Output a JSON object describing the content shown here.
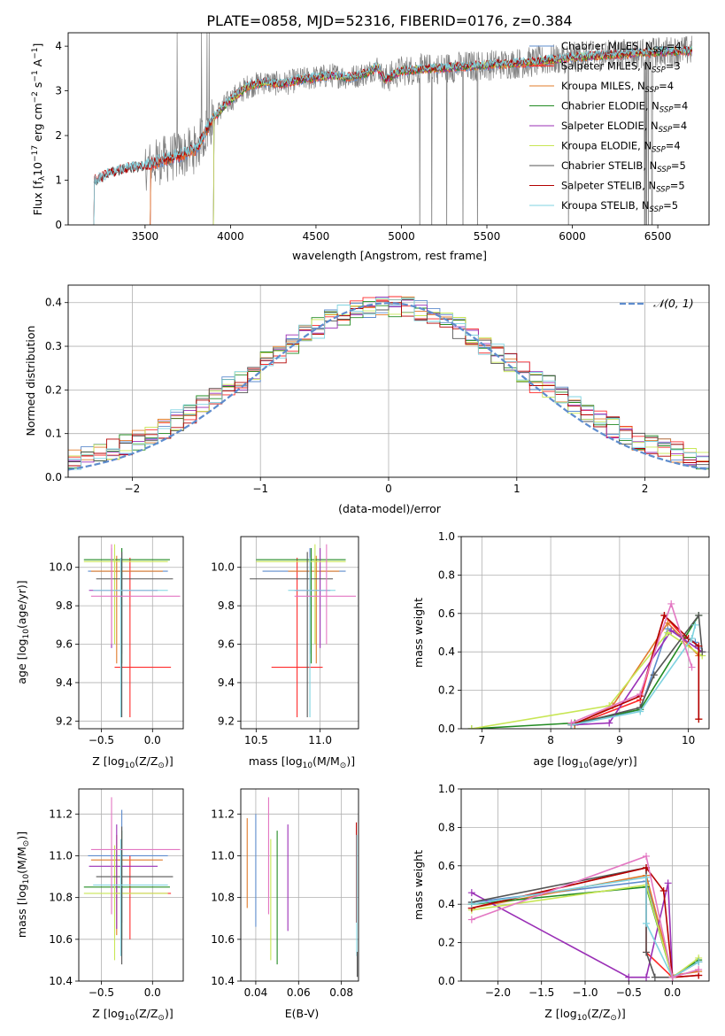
{
  "title": "PLATE=0858, MJD=52316, FIBERID=0176, z=0.384",
  "colors": {
    "chabrier_miles": "#5e8ccd",
    "salpeter_miles": "#ff2a2a",
    "kroupa_miles": "#e07b2a",
    "chabrier_elodie": "#228b22",
    "salpeter_elodie": "#9a2fb6",
    "kroupa_elodie": "#c8e655",
    "chabrier_stelib": "#555555",
    "salpeter_stelib": "#b30000",
    "kroupa_stelib": "#7fd3e0",
    "pink": "#e377c2",
    "data_gray": "#808080"
  },
  "chart_data": [
    {
      "id": "spectrum",
      "type": "line",
      "xlabel": "wavelength [Angstrom, rest frame]",
      "ylabel": "Flux [f_λ 10^-17 erg cm^-2 s^-1 A^-1]",
      "xlim": [
        3050,
        6800
      ],
      "ylim": [
        0,
        4.3
      ],
      "xticks": [
        3500,
        4000,
        4500,
        5000,
        5500,
        6000,
        6500
      ],
      "yticks": [
        0,
        1,
        2,
        3,
        4
      ],
      "legend_placement": "top-right",
      "legend": [
        {
          "key": "chabrier_miles",
          "pre": "Chabrier MILES, N",
          "post": "=4"
        },
        {
          "key": "salpeter_miles",
          "pre": "Salpeter MILES, N",
          "post": "=3"
        },
        {
          "key": "kroupa_miles",
          "pre": "Kroupa MILES, N",
          "post": "=4"
        },
        {
          "key": "chabrier_elodie",
          "pre": "Chabrier ELODIE, N",
          "post": "=4"
        },
        {
          "key": "salpeter_elodie",
          "pre": "Salpeter ELODIE, N",
          "post": "=4"
        },
        {
          "key": "kroupa_elodie",
          "pre": "Kroupa ELODIE, N",
          "post": "=4"
        },
        {
          "key": "chabrier_stelib",
          "pre": "Chabrier STELIB, N",
          "post": "=5"
        },
        {
          "key": "salpeter_stelib",
          "pre": "Salpeter STELIB, N",
          "post": "=5"
        },
        {
          "key": "kroupa_stelib",
          "pre": "Kroupa STELIB, N",
          "post": "=5"
        }
      ],
      "legend_sub": "SSP",
      "model_nodes": {
        "x": [
          3200,
          3300,
          3400,
          3500,
          3600,
          3700,
          3800,
          3900,
          4000,
          4100,
          4200,
          4300,
          4400,
          4500,
          4600,
          4700,
          4800,
          4860,
          4900,
          5000,
          5200,
          5400,
          5600,
          5800,
          6000,
          6200,
          6400,
          6700
        ],
        "y": [
          0.95,
          1.15,
          1.25,
          1.3,
          1.45,
          1.55,
          1.7,
          2.4,
          2.8,
          3.1,
          3.2,
          3.15,
          3.25,
          3.3,
          3.35,
          3.3,
          3.4,
          3.55,
          3.25,
          3.45,
          3.5,
          3.55,
          3.6,
          3.65,
          3.75,
          3.8,
          3.85,
          3.9
        ]
      }
    },
    {
      "id": "residuals",
      "type": "histogram",
      "xlabel": "(data-model)/error",
      "ylabel": "Normed distribution",
      "xlim": [
        -2.5,
        2.5
      ],
      "ylim": [
        0,
        0.44
      ],
      "xticks": [
        -2,
        -1,
        0,
        1,
        2
      ],
      "yticks": [
        0.0,
        0.1,
        0.2,
        0.3,
        0.4
      ],
      "legend": "𝒩(0, 1)",
      "legend_placement": "top-right",
      "bin_width": 0.1
    },
    {
      "id": "age_vs_Z",
      "type": "errorbar",
      "xlabel_pre": "Z [log",
      "xlabel_post": "(Z/Z",
      "ylabel_pre": "age  [log",
      "ylabel_post": "(age/yr)]",
      "xlim": [
        -0.72,
        0.3
      ],
      "ylim": [
        9.16,
        10.16
      ],
      "xticks": [
        -0.5,
        0.0
      ],
      "yticks": [
        9.2,
        9.4,
        9.6,
        9.8,
        10.0
      ],
      "points": [
        {
          "c": "chabrier_miles",
          "x": -0.3,
          "y": 9.98,
          "xe": [
            -0.63,
            0.15
          ],
          "ye": [
            9.55,
            10.1
          ]
        },
        {
          "c": "salpeter_miles",
          "x": -0.22,
          "y": 9.48,
          "xe": [
            -0.37,
            0.18
          ],
          "ye": [
            9.22,
            10.05
          ]
        },
        {
          "c": "kroupa_miles",
          "x": -0.35,
          "y": 9.98,
          "xe": [
            -0.6,
            0.1
          ],
          "ye": [
            9.5,
            10.06
          ]
        },
        {
          "c": "chabrier_elodie",
          "x": -0.3,
          "y": 10.04,
          "xe": [
            -0.67,
            0.17
          ],
          "ye": [
            9.5,
            10.1
          ]
        },
        {
          "c": "salpeter_elodie",
          "x": -0.4,
          "y": 9.88,
          "xe": [
            -0.62,
            0.05
          ],
          "ye": [
            9.58,
            10.1
          ]
        },
        {
          "c": "kroupa_elodie",
          "x": -0.37,
          "y": 10.03,
          "xe": [
            -0.67,
            0.15
          ],
          "ye": [
            9.6,
            10.12
          ]
        },
        {
          "c": "chabrier_stelib",
          "x": -0.3,
          "y": 9.94,
          "xe": [
            -0.55,
            0.2
          ],
          "ye": [
            9.22,
            10.08
          ]
        },
        {
          "c": "kroupa_stelib",
          "x": -0.31,
          "y": 9.88,
          "xe": [
            -0.58,
            0.15
          ],
          "ye": [
            9.22,
            10.05
          ]
        },
        {
          "c": "pink",
          "x": -0.4,
          "y": 9.85,
          "xe": [
            -0.6,
            0.27
          ],
          "ye": [
            9.6,
            10.12
          ]
        }
      ]
    },
    {
      "id": "age_vs_mass",
      "type": "errorbar",
      "xlabel_pre": "mass [log",
      "xlabel_post": "(M/M",
      "xlim": [
        10.38,
        11.3
      ],
      "ylim": [
        9.16,
        10.16
      ],
      "xticks": [
        10.5,
        11.0
      ],
      "yticks": [
        9.2,
        9.4,
        9.6,
        9.8,
        10.0
      ],
      "points": [
        {
          "c": "chabrier_miles",
          "x": 10.92,
          "y": 9.98,
          "xe": [
            10.55,
            11.2
          ],
          "ye": [
            9.55,
            10.1
          ]
        },
        {
          "c": "salpeter_miles",
          "x": 10.82,
          "y": 9.48,
          "xe": [
            10.62,
            11.02
          ],
          "ye": [
            9.22,
            10.05
          ]
        },
        {
          "c": "kroupa_miles",
          "x": 10.97,
          "y": 9.98,
          "xe": [
            10.75,
            11.15
          ],
          "ye": [
            9.5,
            10.06
          ]
        },
        {
          "c": "chabrier_elodie",
          "x": 10.93,
          "y": 10.04,
          "xe": [
            10.5,
            11.2
          ],
          "ye": [
            9.5,
            10.1
          ]
        },
        {
          "c": "salpeter_elodie",
          "x": 11.0,
          "y": 9.88,
          "xe": [
            10.8,
            11.08
          ],
          "ye": [
            9.58,
            10.1
          ]
        },
        {
          "c": "kroupa_elodie",
          "x": 10.96,
          "y": 10.03,
          "xe": [
            10.5,
            11.2
          ],
          "ye": [
            9.6,
            10.12
          ]
        },
        {
          "c": "chabrier_stelib",
          "x": 10.9,
          "y": 9.94,
          "xe": [
            10.45,
            11.1
          ],
          "ye": [
            9.22,
            10.08
          ]
        },
        {
          "c": "kroupa_stelib",
          "x": 10.92,
          "y": 9.88,
          "xe": [
            10.75,
            11.12
          ],
          "ye": [
            9.22,
            10.05
          ]
        },
        {
          "c": "pink",
          "x": 11.05,
          "y": 9.85,
          "xe": [
            10.8,
            11.28
          ],
          "ye": [
            9.6,
            10.12
          ]
        }
      ]
    },
    {
      "id": "weight_vs_age",
      "type": "line",
      "xlabel_pre": "age  [log",
      "xlabel_post": "(age/yr)]",
      "ylabel": "mass weight",
      "xlim": [
        6.7,
        10.3
      ],
      "ylim": [
        0,
        1.0
      ],
      "xticks": [
        7,
        8,
        9,
        10
      ],
      "yticks": [
        0.0,
        0.2,
        0.4,
        0.6,
        0.8,
        1.0
      ],
      "series": [
        {
          "c": "chabrier_miles",
          "x": [
            8.35,
            9.3,
            9.7,
            10.1,
            10.15
          ],
          "y": [
            0.02,
            0.1,
            0.52,
            0.45,
            0.42
          ]
        },
        {
          "c": "salpeter_miles",
          "x": [
            8.35,
            9.3,
            9.65,
            9.95
          ],
          "y": [
            0.02,
            0.15,
            0.59,
            0.47
          ]
        },
        {
          "c": "kroupa_miles",
          "x": [
            8.35,
            8.9,
            9.7,
            10.15,
            10.15
          ],
          "y": [
            0.02,
            0.12,
            0.55,
            0.38,
            0.05
          ]
        },
        {
          "c": "chabrier_elodie",
          "x": [
            6.85,
            8.35,
            9.3,
            10.15
          ],
          "y": [
            0.0,
            0.03,
            0.1,
            0.59
          ]
        },
        {
          "c": "salpeter_elodie",
          "x": [
            8.3,
            8.85,
            9.75,
            10.2
          ],
          "y": [
            0.02,
            0.03,
            0.51,
            0.4
          ]
        },
        {
          "c": "kroupa_elodie",
          "x": [
            6.85,
            8.85,
            9.7,
            10.2
          ],
          "y": [
            0.0,
            0.12,
            0.5,
            0.38
          ]
        },
        {
          "c": "chabrier_stelib",
          "x": [
            8.3,
            9.3,
            9.5,
            10.15,
            10.2
          ],
          "y": [
            0.02,
            0.11,
            0.28,
            0.59,
            0.4
          ]
        },
        {
          "c": "salpeter_stelib",
          "x": [
            8.3,
            9.3,
            9.65,
            10.0,
            10.15,
            10.15
          ],
          "y": [
            0.02,
            0.17,
            0.59,
            0.47,
            0.43,
            0.05
          ]
        },
        {
          "c": "kroupa_stelib",
          "x": [
            8.3,
            9.3,
            10.05,
            10.1
          ],
          "y": [
            0.02,
            0.09,
            0.47,
            0.54
          ]
        },
        {
          "c": "pink",
          "x": [
            8.3,
            9.3,
            9.75,
            10.05
          ],
          "y": [
            0.03,
            0.18,
            0.65,
            0.32
          ]
        }
      ]
    },
    {
      "id": "mass_vs_Z",
      "type": "errorbar",
      "xlabel_pre": "Z [log",
      "xlabel_post": "(Z/Z",
      "ylabel_pre": "mass [log",
      "ylabel_post": "(M/M",
      "xlim": [
        -0.72,
        0.3
      ],
      "ylim": [
        10.4,
        11.32
      ],
      "xticks": [
        -0.5,
        0.0
      ],
      "yticks": [
        10.4,
        10.6,
        10.8,
        11.0,
        11.2
      ],
      "points": [
        {
          "c": "chabrier_miles",
          "x": -0.3,
          "y": 11.0,
          "xe": [
            -0.63,
            0.15
          ],
          "ye": [
            10.68,
            11.22
          ]
        },
        {
          "c": "salpeter_miles",
          "x": -0.22,
          "y": 10.82,
          "xe": [
            -0.37,
            0.18
          ],
          "ye": [
            10.6,
            11.0
          ]
        },
        {
          "c": "kroupa_miles",
          "x": -0.35,
          "y": 10.98,
          "xe": [
            -0.6,
            0.1
          ],
          "ye": [
            10.62,
            11.1
          ]
        },
        {
          "c": "chabrier_elodie",
          "x": -0.3,
          "y": 10.85,
          "xe": [
            -0.67,
            0.17
          ],
          "ye": [
            10.6,
            11.12
          ]
        },
        {
          "c": "salpeter_elodie",
          "x": -0.35,
          "y": 10.95,
          "xe": [
            -0.62,
            0.05
          ],
          "ye": [
            10.65,
            11.15
          ]
        },
        {
          "c": "kroupa_elodie",
          "x": -0.37,
          "y": 10.82,
          "xe": [
            -0.67,
            0.15
          ],
          "ye": [
            10.5,
            11.05
          ]
        },
        {
          "c": "chabrier_stelib",
          "x": -0.3,
          "y": 10.9,
          "xe": [
            -0.55,
            0.2
          ],
          "ye": [
            10.48,
            11.14
          ]
        },
        {
          "c": "kroupa_stelib",
          "x": -0.31,
          "y": 10.86,
          "xe": [
            -0.58,
            0.15
          ],
          "ye": [
            10.52,
            11.08
          ]
        },
        {
          "c": "pink",
          "x": -0.4,
          "y": 11.03,
          "xe": [
            -0.6,
            0.27
          ],
          "ye": [
            10.72,
            11.28
          ]
        }
      ]
    },
    {
      "id": "mass_vs_EBV",
      "type": "errorbar",
      "xlabel": "E(B-V)",
      "xlim": [
        0.033,
        0.088
      ],
      "ylim": [
        10.4,
        11.32
      ],
      "xticks": [
        0.04,
        0.06,
        0.08
      ],
      "yticks": [
        10.4,
        10.6,
        10.8,
        11.0,
        11.2
      ],
      "points": [
        {
          "c": "kroupa_miles",
          "x": 0.036,
          "y": 10.95,
          "xe": [
            0.036,
            0.036
          ],
          "ye": [
            10.75,
            11.18
          ]
        },
        {
          "c": "chabrier_miles",
          "x": 0.04,
          "y": 10.95,
          "xe": [
            0.04,
            0.04
          ],
          "ye": [
            10.66,
            11.2
          ]
        },
        {
          "c": "pink",
          "x": 0.046,
          "y": 11.0,
          "xe": [
            0.046,
            0.046
          ],
          "ye": [
            10.72,
            11.28
          ]
        },
        {
          "c": "kroupa_elodie",
          "x": 0.047,
          "y": 10.8,
          "xe": [
            0.047,
            0.047
          ],
          "ye": [
            10.5,
            11.08
          ]
        },
        {
          "c": "chabrier_elodie",
          "x": 0.05,
          "y": 10.85,
          "xe": [
            0.05,
            0.05
          ],
          "ye": [
            10.48,
            11.12
          ]
        },
        {
          "c": "salpeter_elodie",
          "x": 0.055,
          "y": 10.9,
          "xe": [
            0.055,
            0.055
          ],
          "ye": [
            10.64,
            11.15
          ]
        },
        {
          "c": "salpeter_stelib",
          "x": 0.087,
          "y": 10.95,
          "xe": [
            0.087,
            0.087
          ],
          "ye": [
            10.68,
            11.16
          ]
        },
        {
          "c": "kroupa_stelib",
          "x": 0.0872,
          "y": 10.8,
          "xe": [
            0.0872,
            0.0872
          ],
          "ye": [
            10.52,
            11.1
          ]
        },
        {
          "c": "chabrier_stelib",
          "x": 0.0874,
          "y": 10.5,
          "xe": [
            0.0874,
            0.0874
          ],
          "ye": [
            10.42,
            10.54
          ]
        }
      ]
    },
    {
      "id": "weight_vs_Z",
      "type": "line",
      "xlabel_pre": "Z [log",
      "xlabel_post": "(Z/Z",
      "ylabel": "mass weight",
      "xlim": [
        -2.42,
        0.42
      ],
      "ylim": [
        0,
        1.0
      ],
      "xticks": [
        -2.0,
        -1.5,
        -1.0,
        -0.5,
        0.0
      ],
      "yticks": [
        0.0,
        0.2,
        0.4,
        0.6,
        0.8,
        1.0
      ],
      "series": [
        {
          "c": "chabrier_miles",
          "x": [
            -2.3,
            -0.3,
            0.0,
            0.3
          ],
          "y": [
            0.41,
            0.52,
            0.02,
            0.1
          ]
        },
        {
          "c": "salpeter_miles",
          "x": [
            -2.3,
            -0.3,
            -0.3,
            0.0,
            0.3
          ],
          "y": [
            0.38,
            0.59,
            0.15,
            0.02,
            0.03
          ]
        },
        {
          "c": "kroupa_miles",
          "x": [
            -2.3,
            -0.3,
            0.0,
            0.3
          ],
          "y": [
            0.38,
            0.55,
            0.03,
            0.05
          ]
        },
        {
          "c": "chabrier_elodie",
          "x": [
            -2.3,
            -0.3,
            0.0,
            0.3
          ],
          "y": [
            0.4,
            0.49,
            0.02,
            0.11
          ]
        },
        {
          "c": "salpeter_elodie",
          "x": [
            -2.3,
            -0.5,
            -0.3,
            -0.05,
            0.0
          ],
          "y": [
            0.46,
            0.02,
            0.02,
            0.51,
            0.02
          ]
        },
        {
          "c": "kroupa_elodie",
          "x": [
            -2.3,
            -0.3,
            0.0,
            0.3
          ],
          "y": [
            0.37,
            0.5,
            0.02,
            0.12
          ]
        },
        {
          "c": "chabrier_stelib",
          "x": [
            -2.3,
            -0.3,
            -0.3,
            -0.2,
            0.0,
            0.3
          ],
          "y": [
            0.41,
            0.59,
            0.15,
            0.02,
            0.02,
            0.1
          ]
        },
        {
          "c": "salpeter_stelib",
          "x": [
            -2.3,
            -0.3,
            -0.1,
            0.0,
            0.3
          ],
          "y": [
            0.38,
            0.59,
            0.47,
            0.02,
            0.03
          ]
        },
        {
          "c": "kroupa_stelib",
          "x": [
            -2.3,
            -0.3,
            -0.3,
            0.0,
            0.3
          ],
          "y": [
            0.4,
            0.54,
            0.3,
            0.02,
            0.1
          ]
        },
        {
          "c": "pink",
          "x": [
            -2.3,
            -0.3,
            0.0,
            0.3
          ],
          "y": [
            0.32,
            0.65,
            0.02,
            0.06
          ]
        }
      ]
    }
  ]
}
